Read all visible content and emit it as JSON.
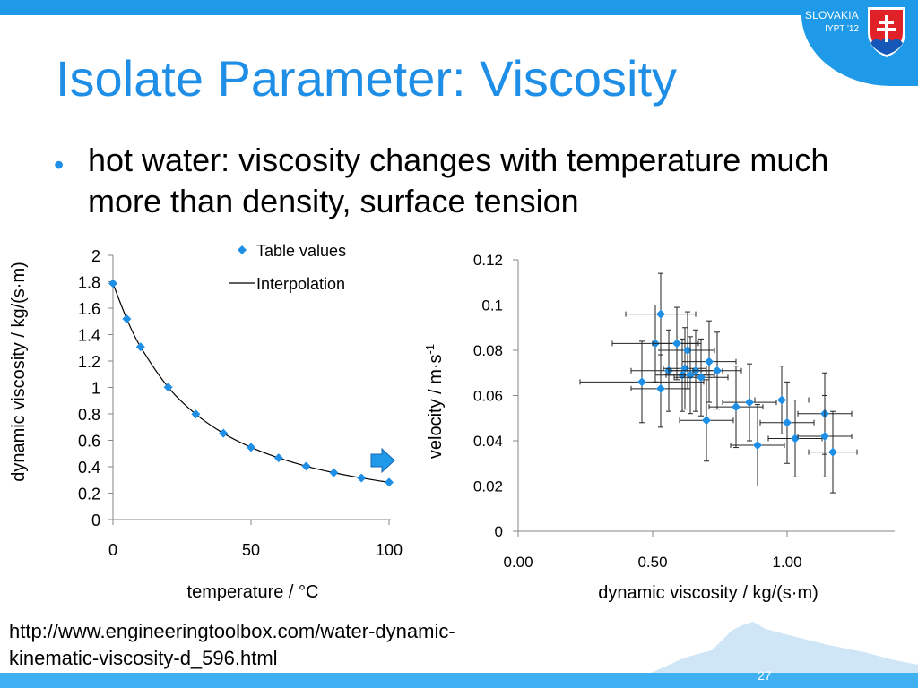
{
  "badge": {
    "country": "SLOVAKIA",
    "event": "IYPT '12"
  },
  "title": "Isolate Parameter: Viscosity",
  "bullet": {
    "marker": "•",
    "text": "hot water: viscosity changes with temperature much more than density, surface tension"
  },
  "source": "http://www.engineeringtoolbox.com/water-dynamic-kinematic-viscosity-d_596.html",
  "page_number": "27",
  "colors": {
    "accent": "#1e8ee6",
    "bar": "#1e9ae8",
    "marker": "#1f8fe6",
    "footer": "#3fb1f3"
  },
  "icons": [
    "coat-of-arms-icon",
    "arrow-right-icon",
    "mountain-silhouette-icon"
  ],
  "chart_data": [
    {
      "type": "scatter",
      "xlabel": "temperature / °C",
      "ylabel": "dynamic viscosity / kg/(s·m)",
      "xlim": [
        0,
        100
      ],
      "ylim": [
        0,
        2
      ],
      "x_ticks": [
        "0",
        "50",
        "100"
      ],
      "y_ticks": [
        "0",
        "0.2",
        "0.4",
        "0.6",
        "0.8",
        "1",
        "1.2",
        "1.4",
        "1.6",
        "1.8",
        "2"
      ],
      "legend": [
        "Table values",
        "Interpolation"
      ],
      "legend_position": "top-right",
      "grid": false,
      "series": [
        {
          "name": "Table values",
          "marker": "diamond",
          "x": [
            0,
            5,
            10,
            20,
            30,
            40,
            50,
            60,
            70,
            80,
            90,
            100
          ],
          "y": [
            1.787,
            1.519,
            1.307,
            1.002,
            0.798,
            0.653,
            0.547,
            0.467,
            0.404,
            0.355,
            0.315,
            0.282
          ]
        },
        {
          "name": "Interpolation",
          "line": true,
          "x": [
            0,
            5,
            10,
            20,
            30,
            40,
            50,
            60,
            70,
            80,
            90,
            100
          ],
          "y": [
            1.787,
            1.519,
            1.307,
            1.002,
            0.798,
            0.653,
            0.547,
            0.467,
            0.404,
            0.355,
            0.315,
            0.282
          ]
        }
      ]
    },
    {
      "type": "scatter",
      "xlabel": "dynamic viscosity / kg/(s·m)",
      "ylabel": "velocity / m·s",
      "ylabel_superscript": "-1",
      "xlim": [
        0,
        1.4
      ],
      "ylim": [
        0,
        0.12
      ],
      "x_ticks": [
        "0.00",
        "0.50",
        "1.00"
      ],
      "y_ticks": [
        "0",
        "0.02",
        "0.04",
        "0.06",
        "0.08",
        "0.1",
        "0.12"
      ],
      "grid": false,
      "error_bars": true,
      "points": [
        {
          "x": 0.53,
          "y": 0.096,
          "xerr": 0.13,
          "yerr": 0.018
        },
        {
          "x": 0.51,
          "y": 0.083,
          "xerr": 0.16,
          "yerr": 0.017
        },
        {
          "x": 0.46,
          "y": 0.066,
          "xerr": 0.23,
          "yerr": 0.018
        },
        {
          "x": 0.53,
          "y": 0.063,
          "xerr": 0.11,
          "yerr": 0.017
        },
        {
          "x": 0.56,
          "y": 0.071,
          "xerr": 0.14,
          "yerr": 0.018
        },
        {
          "x": 0.59,
          "y": 0.083,
          "xerr": 0.09,
          "yerr": 0.016
        },
        {
          "x": 0.61,
          "y": 0.069,
          "xerr": 0.1,
          "yerr": 0.016
        },
        {
          "x": 0.62,
          "y": 0.072,
          "xerr": 0.08,
          "yerr": 0.018
        },
        {
          "x": 0.63,
          "y": 0.08,
          "xerr": 0.1,
          "yerr": 0.017
        },
        {
          "x": 0.64,
          "y": 0.069,
          "xerr": 0.09,
          "yerr": 0.017
        },
        {
          "x": 0.66,
          "y": 0.071,
          "xerr": 0.1,
          "yerr": 0.018
        },
        {
          "x": 0.68,
          "y": 0.068,
          "xerr": 0.1,
          "yerr": 0.017
        },
        {
          "x": 0.7,
          "y": 0.049,
          "xerr": 0.1,
          "yerr": 0.018
        },
        {
          "x": 0.71,
          "y": 0.075,
          "xerr": 0.1,
          "yerr": 0.018
        },
        {
          "x": 0.74,
          "y": 0.071,
          "xerr": 0.09,
          "yerr": 0.017
        },
        {
          "x": 0.81,
          "y": 0.055,
          "xerr": 0.1,
          "yerr": 0.018
        },
        {
          "x": 0.86,
          "y": 0.057,
          "xerr": 0.1,
          "yerr": 0.017
        },
        {
          "x": 0.89,
          "y": 0.038,
          "xerr": 0.1,
          "yerr": 0.018
        },
        {
          "x": 0.98,
          "y": 0.058,
          "xerr": 0.1,
          "yerr": 0.015
        },
        {
          "x": 1.0,
          "y": 0.048,
          "xerr": 0.1,
          "yerr": 0.018
        },
        {
          "x": 1.03,
          "y": 0.041,
          "xerr": 0.1,
          "yerr": 0.017
        },
        {
          "x": 1.14,
          "y": 0.052,
          "xerr": 0.1,
          "yerr": 0.018
        },
        {
          "x": 1.14,
          "y": 0.042,
          "xerr": 0.1,
          "yerr": 0.018
        },
        {
          "x": 1.17,
          "y": 0.035,
          "xerr": 0.09,
          "yerr": 0.018
        }
      ]
    }
  ]
}
